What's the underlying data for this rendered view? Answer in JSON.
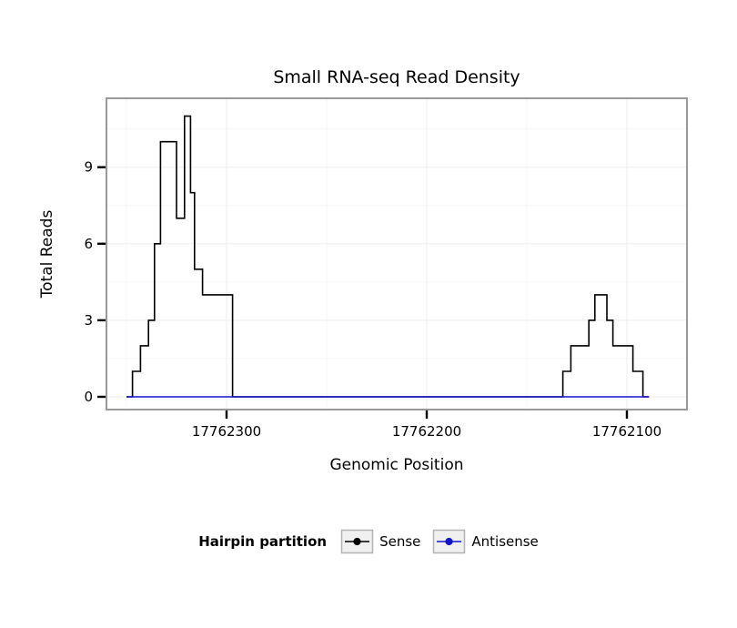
{
  "chart_data": {
    "type": "line",
    "subtype": "step",
    "title": "Small RNA-seq Read Density",
    "xlabel": "Genomic Position",
    "ylabel": "Total Reads",
    "legend_title": "Hairpin partition",
    "x_axis_reversed": true,
    "xlim": [
      17762360,
      17762070
    ],
    "ylim": [
      -0.5,
      11.7
    ],
    "xticks": [
      17762300,
      17762200,
      17762100
    ],
    "yticks": [
      0,
      3,
      6,
      9
    ],
    "xminor": [
      17762350,
      17762250,
      17762150
    ],
    "yminor": [
      1.5,
      4.5,
      7.5,
      10.5
    ],
    "grid": true,
    "legend_position": "bottom",
    "panel_border_color": "#999999",
    "series": [
      {
        "name": "Sense",
        "color": "#000000",
        "end": 17762089,
        "steps": [
          [
            17762350,
            0
          ],
          [
            17762347,
            1
          ],
          [
            17762343,
            2
          ],
          [
            17762339,
            3
          ],
          [
            17762336,
            6
          ],
          [
            17762333,
            10
          ],
          [
            17762325,
            7
          ],
          [
            17762321,
            11
          ],
          [
            17762318,
            8
          ],
          [
            17762316,
            5
          ],
          [
            17762312,
            4
          ],
          [
            17762297,
            0
          ],
          [
            17762132,
            1
          ],
          [
            17762128,
            2
          ],
          [
            17762119,
            3
          ],
          [
            17762116,
            4
          ],
          [
            17762110,
            3
          ],
          [
            17762107,
            2
          ],
          [
            17762097,
            1
          ],
          [
            17762092,
            0
          ]
        ]
      },
      {
        "name": "Antisense",
        "color": "#1414cc",
        "end": 17762089,
        "steps": [
          [
            17762350,
            0
          ]
        ]
      }
    ]
  }
}
